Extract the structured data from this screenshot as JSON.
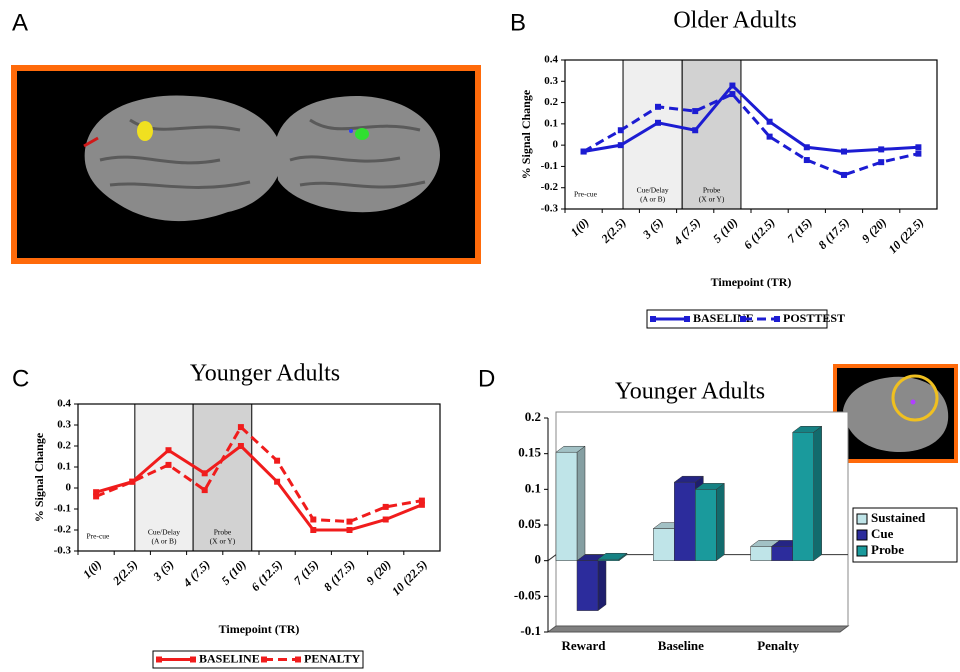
{
  "panel_labels": [
    "A",
    "B",
    "C",
    "D"
  ],
  "chart_data": [
    {
      "type": "line",
      "title": "Older Adults",
      "x_label": "Timepoint (TR)",
      "y_label": "% Signal Change",
      "categories": [
        "1(0)",
        "2(2.5)",
        "3 (5)",
        "4 (7.5)",
        "5 (10)",
        "6 (12.5)",
        "7 (15)",
        "8 (17.5)",
        "9 (20)",
        "10 (22.5)"
      ],
      "series": [
        {
          "name": "BASELINE",
          "color": "#1c1cd2",
          "line_style": "solid",
          "values": [
            -0.03,
            0.0,
            0.105,
            0.07,
            0.28,
            0.11,
            -0.01,
            -0.03,
            -0.02,
            -0.01
          ]
        },
        {
          "name": "POSTTEST",
          "color": "#1c1cd2",
          "line_style": "dashed",
          "values": [
            -0.03,
            0.07,
            0.18,
            0.16,
            0.24,
            0.04,
            -0.07,
            -0.14,
            -0.08,
            -0.04
          ]
        }
      ],
      "annotations": [
        [
          "Pre-cue"
        ],
        [
          "Cue/Delay",
          "(A or B)"
        ],
        [
          "Probe",
          "(X or Y)"
        ]
      ],
      "ylim": [
        -0.3,
        0.4
      ],
      "yticks": [
        -0.3,
        -0.2,
        -0.1,
        0,
        0.1,
        0.2,
        0.3,
        0.4
      ],
      "legend": "bottom"
    },
    {
      "type": "line",
      "title": "Younger Adults",
      "x_label": "Timepoint (TR)",
      "y_label": "% Signal Change",
      "categories": [
        "1(0)",
        "2(2.5)",
        "3 (5)",
        "4 (7.5)",
        "5 (10)",
        "6 (12.5)",
        "7 (15)",
        "8 (17.5)",
        "9 (20)",
        "10 (22.5)"
      ],
      "series": [
        {
          "name": "BASELINE",
          "color": "#f01c1c",
          "line_style": "solid",
          "values": [
            -0.02,
            0.03,
            0.18,
            0.07,
            0.2,
            0.03,
            -0.2,
            -0.2,
            -0.15,
            -0.08
          ]
        },
        {
          "name": "PENALTY",
          "color": "#f01c1c",
          "line_style": "dashed",
          "values": [
            -0.04,
            0.03,
            0.11,
            -0.01,
            0.29,
            0.13,
            -0.15,
            -0.16,
            -0.09,
            -0.06
          ]
        }
      ],
      "annotations": [
        [
          "Pre-cue"
        ],
        [
          "Cue/Delay",
          "(A or B)"
        ],
        [
          "Probe",
          "(X or Y)"
        ]
      ],
      "ylim": [
        -0.3,
        0.4
      ],
      "yticks": [
        -0.3,
        -0.2,
        -0.1,
        0,
        0.1,
        0.2,
        0.3,
        0.4
      ],
      "legend": "bottom"
    },
    {
      "type": "bar",
      "title": "Younger Adults",
      "categories": [
        "Reward",
        "Baseline",
        "Penalty"
      ],
      "series": [
        {
          "name": "Sustained",
          "color": "#bfe4e8",
          "values": [
            0.152,
            0.045,
            0.02
          ]
        },
        {
          "name": "Cue",
          "color": "#2c2c9c",
          "values": [
            -0.07,
            0.11,
            0.02
          ]
        },
        {
          "name": "Probe",
          "color": "#1a9a9c",
          "values": [
            0.002,
            0.1,
            0.18
          ]
        }
      ],
      "ylim": [
        -0.1,
        0.2
      ],
      "yticks": [
        -0.1,
        -0.05,
        0,
        0.05,
        0.1,
        0.15,
        0.2
      ],
      "legend": "right"
    }
  ]
}
